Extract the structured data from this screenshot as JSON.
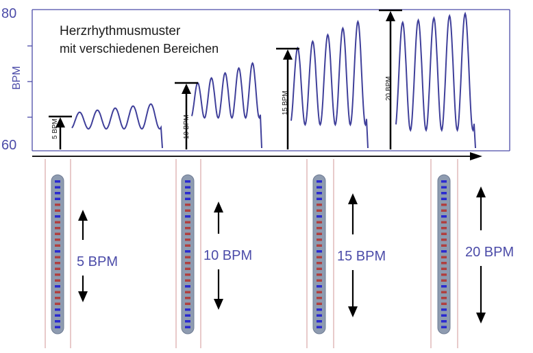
{
  "title_lines": [
    "Herzrhythmusmuster",
    "mit verschiedenen Bereichen"
  ],
  "y_axis": {
    "label": "BPM",
    "tick_labels": [
      "80",
      "60"
    ]
  },
  "colors": {
    "frame": "#4a4aa8",
    "wave": "#3f3f9a",
    "text_blue": "#4b4ba8",
    "arrow": "#000000",
    "guide_line": "#d9a6a6",
    "strip_fill": "#8e9bb0",
    "strip_edge": "#6f7c93",
    "mark_blue": "#2a2ad0",
    "mark_red": "#b04040"
  },
  "ranges": [
    {
      "chart_label": "5 BPM",
      "strip_label": "5 BPM",
      "icon": "double-arrow-icon"
    },
    {
      "chart_label": "10 BPM",
      "strip_label": "10 BPM",
      "icon": "double-arrow-icon"
    },
    {
      "chart_label": "15 BPM",
      "strip_label": "15 BPM",
      "icon": "double-arrow-icon"
    },
    {
      "chart_label": "20 BPM",
      "strip_label": "20 BPM",
      "icon": "double-arrow-icon"
    }
  ],
  "axis_arrow_icon": "right-arrow-icon"
}
